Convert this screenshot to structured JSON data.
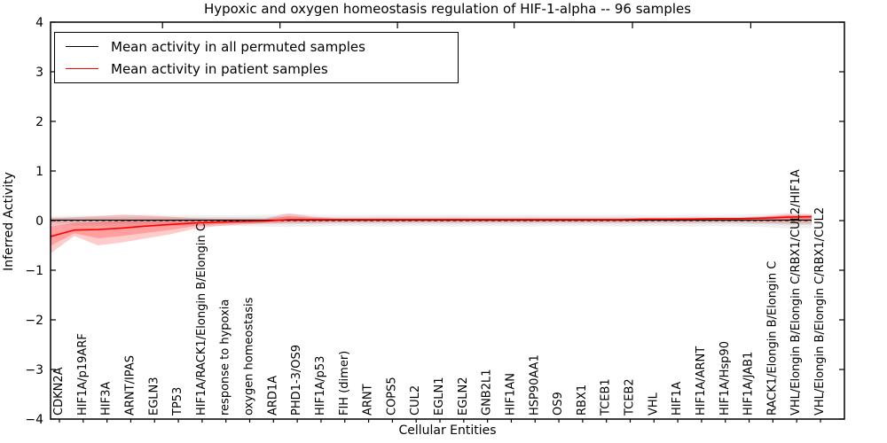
{
  "title": "Hypoxic and oxygen homeostasis regulation of HIF-1-alpha -- 96 samples",
  "legend": {
    "items": [
      {
        "label": "Mean activity in all permuted samples",
        "color": "#000000"
      },
      {
        "label": "Mean activity in patient samples",
        "color": "#ff0000"
      }
    ],
    "position": "upper left"
  },
  "chart_data": {
    "type": "line",
    "title": "Hypoxic and oxygen homeostasis regulation of HIF-1-alpha -- 96 samples",
    "xlabel": "Cellular Entities",
    "ylabel": "Inferred Activity",
    "ylim": [
      -4,
      4
    ],
    "yticks": [
      4,
      3,
      2,
      1,
      0,
      -1,
      -2,
      -3,
      -4
    ],
    "grid": false,
    "zero_line": "dashed",
    "legend_position": "upper left",
    "categories": [
      "CDKN2A",
      "HIF1A/p19ARF",
      "HIF3A",
      "ARNT/IPAS",
      "EGLN3",
      "TP53",
      "HIF1A/RACK1/Elongin B/Elongin C",
      "response to hypoxia",
      "oxygen homeostasis",
      "ARD1A",
      "PHD1-3/OS9",
      "HIF1A/p53",
      "FIH (dimer)",
      "ARNT",
      "COPS5",
      "CUL2",
      "EGLN1",
      "EGLN2",
      "GNB2L1",
      "HIF1AN",
      "HSP90AA1",
      "OS9",
      "RBX1",
      "TCEB1",
      "TCEB2",
      "VHL",
      "HIF1A",
      "HIF1A/ARNT",
      "HIF1A/Hsp90",
      "HIF1A/JAB1",
      "RACK1/Elongin B/Elongin C",
      "VHL/Elongin B/Elongin C/RBX1/CUL2/HIF1A",
      "VHL/Elongin B/Elongin C/RBX1/CUL2"
    ],
    "series": [
      {
        "name": "Mean activity in all permuted samples",
        "color": "#000000",
        "band_color": "#888888",
        "values": [
          0.01,
          0.01,
          0.01,
          0.01,
          0.01,
          0.01,
          0.01,
          0.01,
          0.01,
          0.01,
          0.01,
          0.01,
          0.01,
          0.01,
          0.01,
          0.01,
          0.01,
          0.01,
          0.01,
          0.01,
          0.01,
          0.01,
          0.01,
          0.01,
          0.01,
          0.01,
          0.01,
          0.01,
          0.01,
          0.01,
          0.01,
          0.01,
          0.01
        ],
        "band_upper": [
          0.09,
          0.1,
          0.11,
          0.11,
          0.12,
          0.11,
          0.11,
          0.11,
          0.11,
          0.12,
          0.13,
          0.12,
          0.11,
          0.11,
          0.12,
          0.11,
          0.11,
          0.12,
          0.11,
          0.11,
          0.12,
          0.11,
          0.11,
          0.11,
          0.12,
          0.11,
          0.11,
          0.12,
          0.11,
          0.12,
          0.13,
          0.16,
          0.15
        ],
        "band_lower": [
          -0.09,
          -0.1,
          -0.11,
          -0.11,
          -0.12,
          -0.11,
          -0.11,
          -0.11,
          -0.11,
          -0.12,
          -0.13,
          -0.12,
          -0.11,
          -0.11,
          -0.12,
          -0.11,
          -0.11,
          -0.12,
          -0.11,
          -0.11,
          -0.12,
          -0.11,
          -0.11,
          -0.11,
          -0.12,
          -0.11,
          -0.11,
          -0.12,
          -0.11,
          -0.12,
          -0.13,
          -0.16,
          -0.15
        ]
      },
      {
        "name": "Mean activity in patient samples",
        "color": "#ff0000",
        "band_color": "#ff0000",
        "values": [
          -0.32,
          -0.19,
          -0.18,
          -0.15,
          -0.11,
          -0.08,
          -0.05,
          -0.03,
          -0.02,
          -0.01,
          0.02,
          0.02,
          0.02,
          0.02,
          0.02,
          0.02,
          0.02,
          0.02,
          0.02,
          0.02,
          0.02,
          0.02,
          0.02,
          0.02,
          0.02,
          0.03,
          0.03,
          0.03,
          0.04,
          0.04,
          0.05,
          0.07,
          0.08
        ],
        "band_upper": [
          0.05,
          0.07,
          0.09,
          0.12,
          0.1,
          0.08,
          0.05,
          0.04,
          0.04,
          0.04,
          0.15,
          0.08,
          0.05,
          0.05,
          0.05,
          0.05,
          0.05,
          0.05,
          0.05,
          0.05,
          0.05,
          0.05,
          0.05,
          0.05,
          0.05,
          0.05,
          0.05,
          0.06,
          0.06,
          0.06,
          0.09,
          0.13,
          0.12
        ],
        "band_lower": [
          -0.66,
          -0.31,
          -0.5,
          -0.44,
          -0.36,
          -0.28,
          -0.17,
          -0.11,
          -0.08,
          -0.06,
          -0.05,
          -0.05,
          -0.04,
          -0.04,
          -0.04,
          -0.04,
          -0.04,
          -0.04,
          -0.04,
          -0.04,
          -0.04,
          -0.04,
          -0.04,
          -0.04,
          -0.04,
          -0.04,
          -0.04,
          -0.04,
          -0.04,
          -0.04,
          -0.05,
          -0.06,
          -0.06
        ]
      }
    ]
  },
  "colors": {
    "accent_red": "#ff0000",
    "line_black": "#000000",
    "background": "#ffffff"
  }
}
